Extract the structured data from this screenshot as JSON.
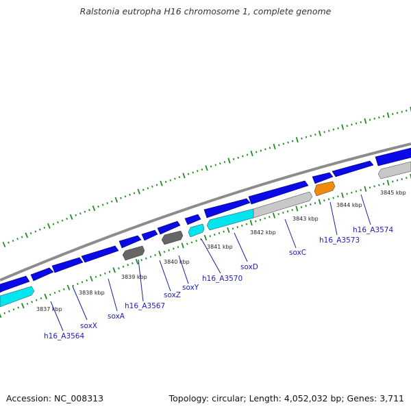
{
  "header": {
    "title": "Ralstonia eutropha H16 chromosome 1, complete genome"
  },
  "footer": {
    "accession": "Accession: NC_008313",
    "stats": "Topology: circular; Length: 4,052,032 bp; Genes: 3,711"
  },
  "colors": {
    "backbone": "#8c8c8c",
    "forward_gene": "#0a0ae6",
    "reverse_gene_cyan": "#00e5f0",
    "reverse_gene_gray": "#c8c8c8",
    "reverse_gene_dark": "#666666",
    "reverse_gene_orange": "#f08a0a",
    "tick": "#1e8a1e",
    "gene_label": "#1a1ab8"
  },
  "scale_labels": [
    "3837 kbp",
    "3838 kbp",
    "3839 kbp",
    "3840 kbp",
    "3841 kbp",
    "3842 kbp",
    "3843 kbp",
    "3844 kbp",
    "3845 kbp"
  ],
  "gene_labels": [
    "h16_A3564",
    "soxX",
    "soxA",
    "h16_A3567",
    "soxZ",
    "soxY",
    "h16_A3570",
    "soxD",
    "soxC",
    "h16_A3573",
    "h16_A3574"
  ]
}
